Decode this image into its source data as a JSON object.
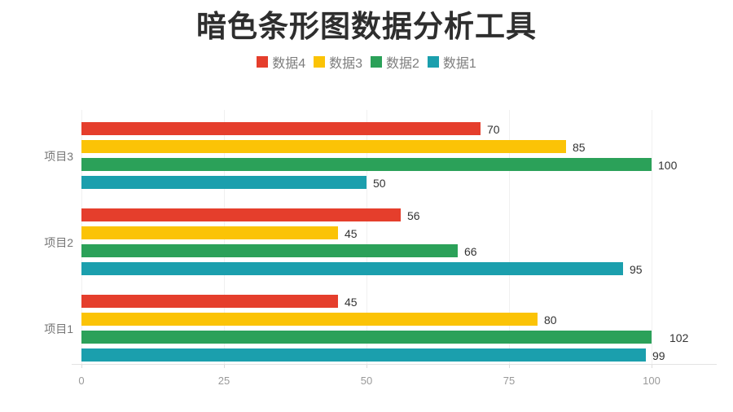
{
  "title": "暗色条形图数据分析工具",
  "legend": {
    "items": [
      {
        "label": "数据4",
        "color": "#e53e2c"
      },
      {
        "label": "数据3",
        "color": "#fbc306"
      },
      {
        "label": "数据2",
        "color": "#2ba159"
      },
      {
        "label": "数据1",
        "color": "#1b9fad"
      }
    ]
  },
  "chart_data": {
    "type": "bar",
    "orientation": "horizontal",
    "title": "暗色条形图数据分析工具",
    "xlabel": "",
    "ylabel": "",
    "categories": [
      "项目3",
      "项目2",
      "项目1"
    ],
    "series": [
      {
        "name": "数据4",
        "color": "#e53e2c",
        "values": [
          70,
          56,
          45
        ]
      },
      {
        "name": "数据3",
        "color": "#fbc306",
        "values": [
          85,
          45,
          80
        ]
      },
      {
        "name": "数据2",
        "color": "#2ba159",
        "values": [
          100,
          66,
          102
        ]
      },
      {
        "name": "数据1",
        "color": "#1b9fad",
        "values": [
          50,
          95,
          99
        ]
      }
    ],
    "x_ticks": [
      0,
      25,
      50,
      75,
      100
    ],
    "xlim": [
      0,
      100
    ],
    "bars_clipped_at_max": true,
    "grid": true,
    "value_labels": true,
    "legend_position": "top"
  },
  "colors": {
    "title_text": "#2e2e2e",
    "legend_text": "#7d7d7d",
    "category_text": "#767676",
    "tick_text": "#999999",
    "value_text": "#333333",
    "gridline": "#f0f0f0",
    "axis_line": "#e3e3e3",
    "background": "#ffffff"
  }
}
